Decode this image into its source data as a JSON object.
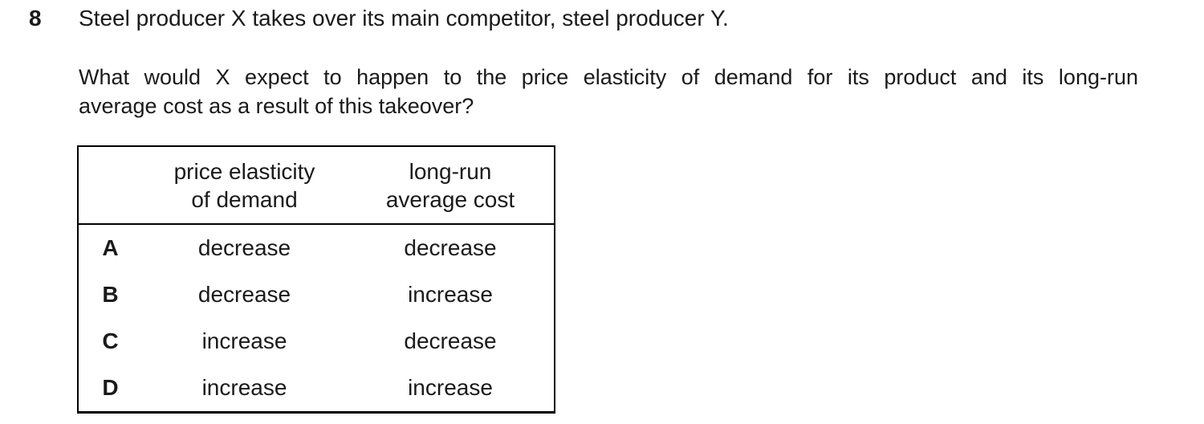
{
  "colors": {
    "text": "#1a1a1a",
    "background": "#ffffff",
    "table_border": "#000000"
  },
  "question": {
    "number": "8",
    "stem": "Steel producer X takes over its main competitor, steel producer Y.",
    "body_line1": "What would X expect to happen to the price elasticity of demand for its product and its long-run",
    "body_line2": "average cost as a result of this takeover?"
  },
  "options_table": {
    "columns": [
      {
        "label": ""
      },
      {
        "label": "price elasticity\nof demand"
      },
      {
        "label": "long-run\naverage cost"
      }
    ],
    "rows": [
      {
        "option": "A",
        "price_elasticity_of_demand": "decrease",
        "long_run_average_cost": "decrease"
      },
      {
        "option": "B",
        "price_elasticity_of_demand": "decrease",
        "long_run_average_cost": "increase"
      },
      {
        "option": "C",
        "price_elasticity_of_demand": "increase",
        "long_run_average_cost": "decrease"
      },
      {
        "option": "D",
        "price_elasticity_of_demand": "increase",
        "long_run_average_cost": "increase"
      }
    ]
  }
}
